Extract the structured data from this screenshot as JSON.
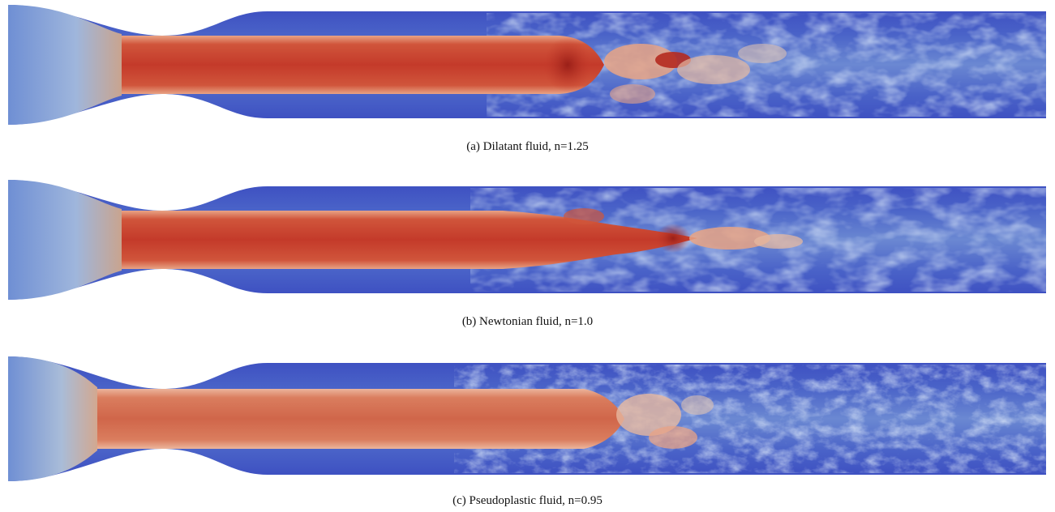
{
  "figure": {
    "panels": [
      {
        "id": "a",
        "caption": "(a) Dilatant fluid, n=1.25",
        "colors": {
          "wall": "#3b4cc0",
          "core": "#c43a2a",
          "core_hot": "#9a1f18",
          "mid": "#8db0d8"
        }
      },
      {
        "id": "b",
        "caption": "(b) Newtonian fluid, n=1.0",
        "colors": {
          "wall": "#3b4cc0",
          "core": "#c43a2a",
          "core_hot": "#9a1f18",
          "mid": "#8db0d8"
        }
      },
      {
        "id": "c",
        "caption": "(c) Pseudoplastic fluid, n=0.95",
        "colors": {
          "wall": "#3b4cc0",
          "core": "#d0664a",
          "core_hot": "#c8553d",
          "mid": "#8db0d8"
        }
      }
    ]
  }
}
